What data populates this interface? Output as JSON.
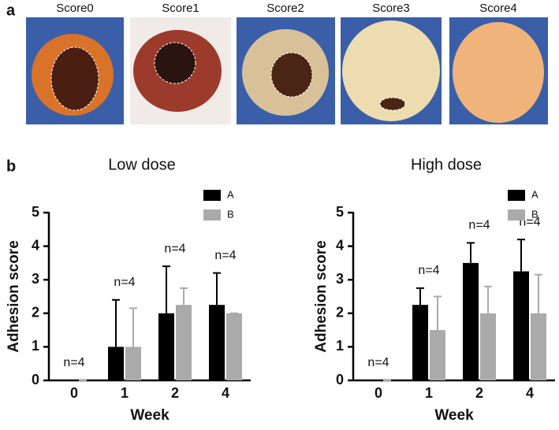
{
  "panel_a": {
    "label": "a",
    "images": [
      "Score0",
      "Score1",
      "Score2",
      "Score3",
      "Score4"
    ]
  },
  "panel_b": {
    "label": "b"
  },
  "chart_data": [
    {
      "type": "bar",
      "title": "Low dose",
      "x_label": "Week",
      "y_label": "Adhesion score",
      "categories": [
        "0",
        "1",
        "2",
        "4"
      ],
      "series": [
        {
          "name": "A",
          "color": "#000000",
          "values": [
            0,
            1,
            2,
            2.25
          ],
          "errors": [
            0,
            1.4,
            1.4,
            0.95
          ]
        },
        {
          "name": "B",
          "color": "#aaaaaa",
          "values": [
            0,
            1,
            2.25,
            2
          ],
          "errors": [
            0,
            1.15,
            0.5,
            0
          ]
        }
      ],
      "annotations": [
        "n=4",
        "n=4",
        "n=4",
        "n=4"
      ],
      "ylim": [
        0,
        5
      ],
      "yticks": [
        0,
        1,
        2,
        3,
        4,
        5
      ],
      "legend": "upper right"
    },
    {
      "type": "bar",
      "title": "High dose",
      "x_label": "Week",
      "y_label": "Adhesion score",
      "categories": [
        "0",
        "1",
        "2",
        "4"
      ],
      "series": [
        {
          "name": "A",
          "color": "#000000",
          "values": [
            0,
            2.25,
            3.5,
            3.25
          ],
          "errors": [
            0,
            0.5,
            0.6,
            0.95
          ]
        },
        {
          "name": "B",
          "color": "#aaaaaa",
          "values": [
            0,
            1.5,
            2,
            2
          ],
          "errors": [
            0,
            1,
            0.8,
            1.15
          ]
        }
      ],
      "annotations": [
        "n=4",
        "n=4",
        "n=4",
        "n=4"
      ],
      "ylim": [
        0,
        5
      ],
      "yticks": [
        0,
        1,
        2,
        3,
        4,
        5
      ],
      "legend": "upper right"
    }
  ]
}
